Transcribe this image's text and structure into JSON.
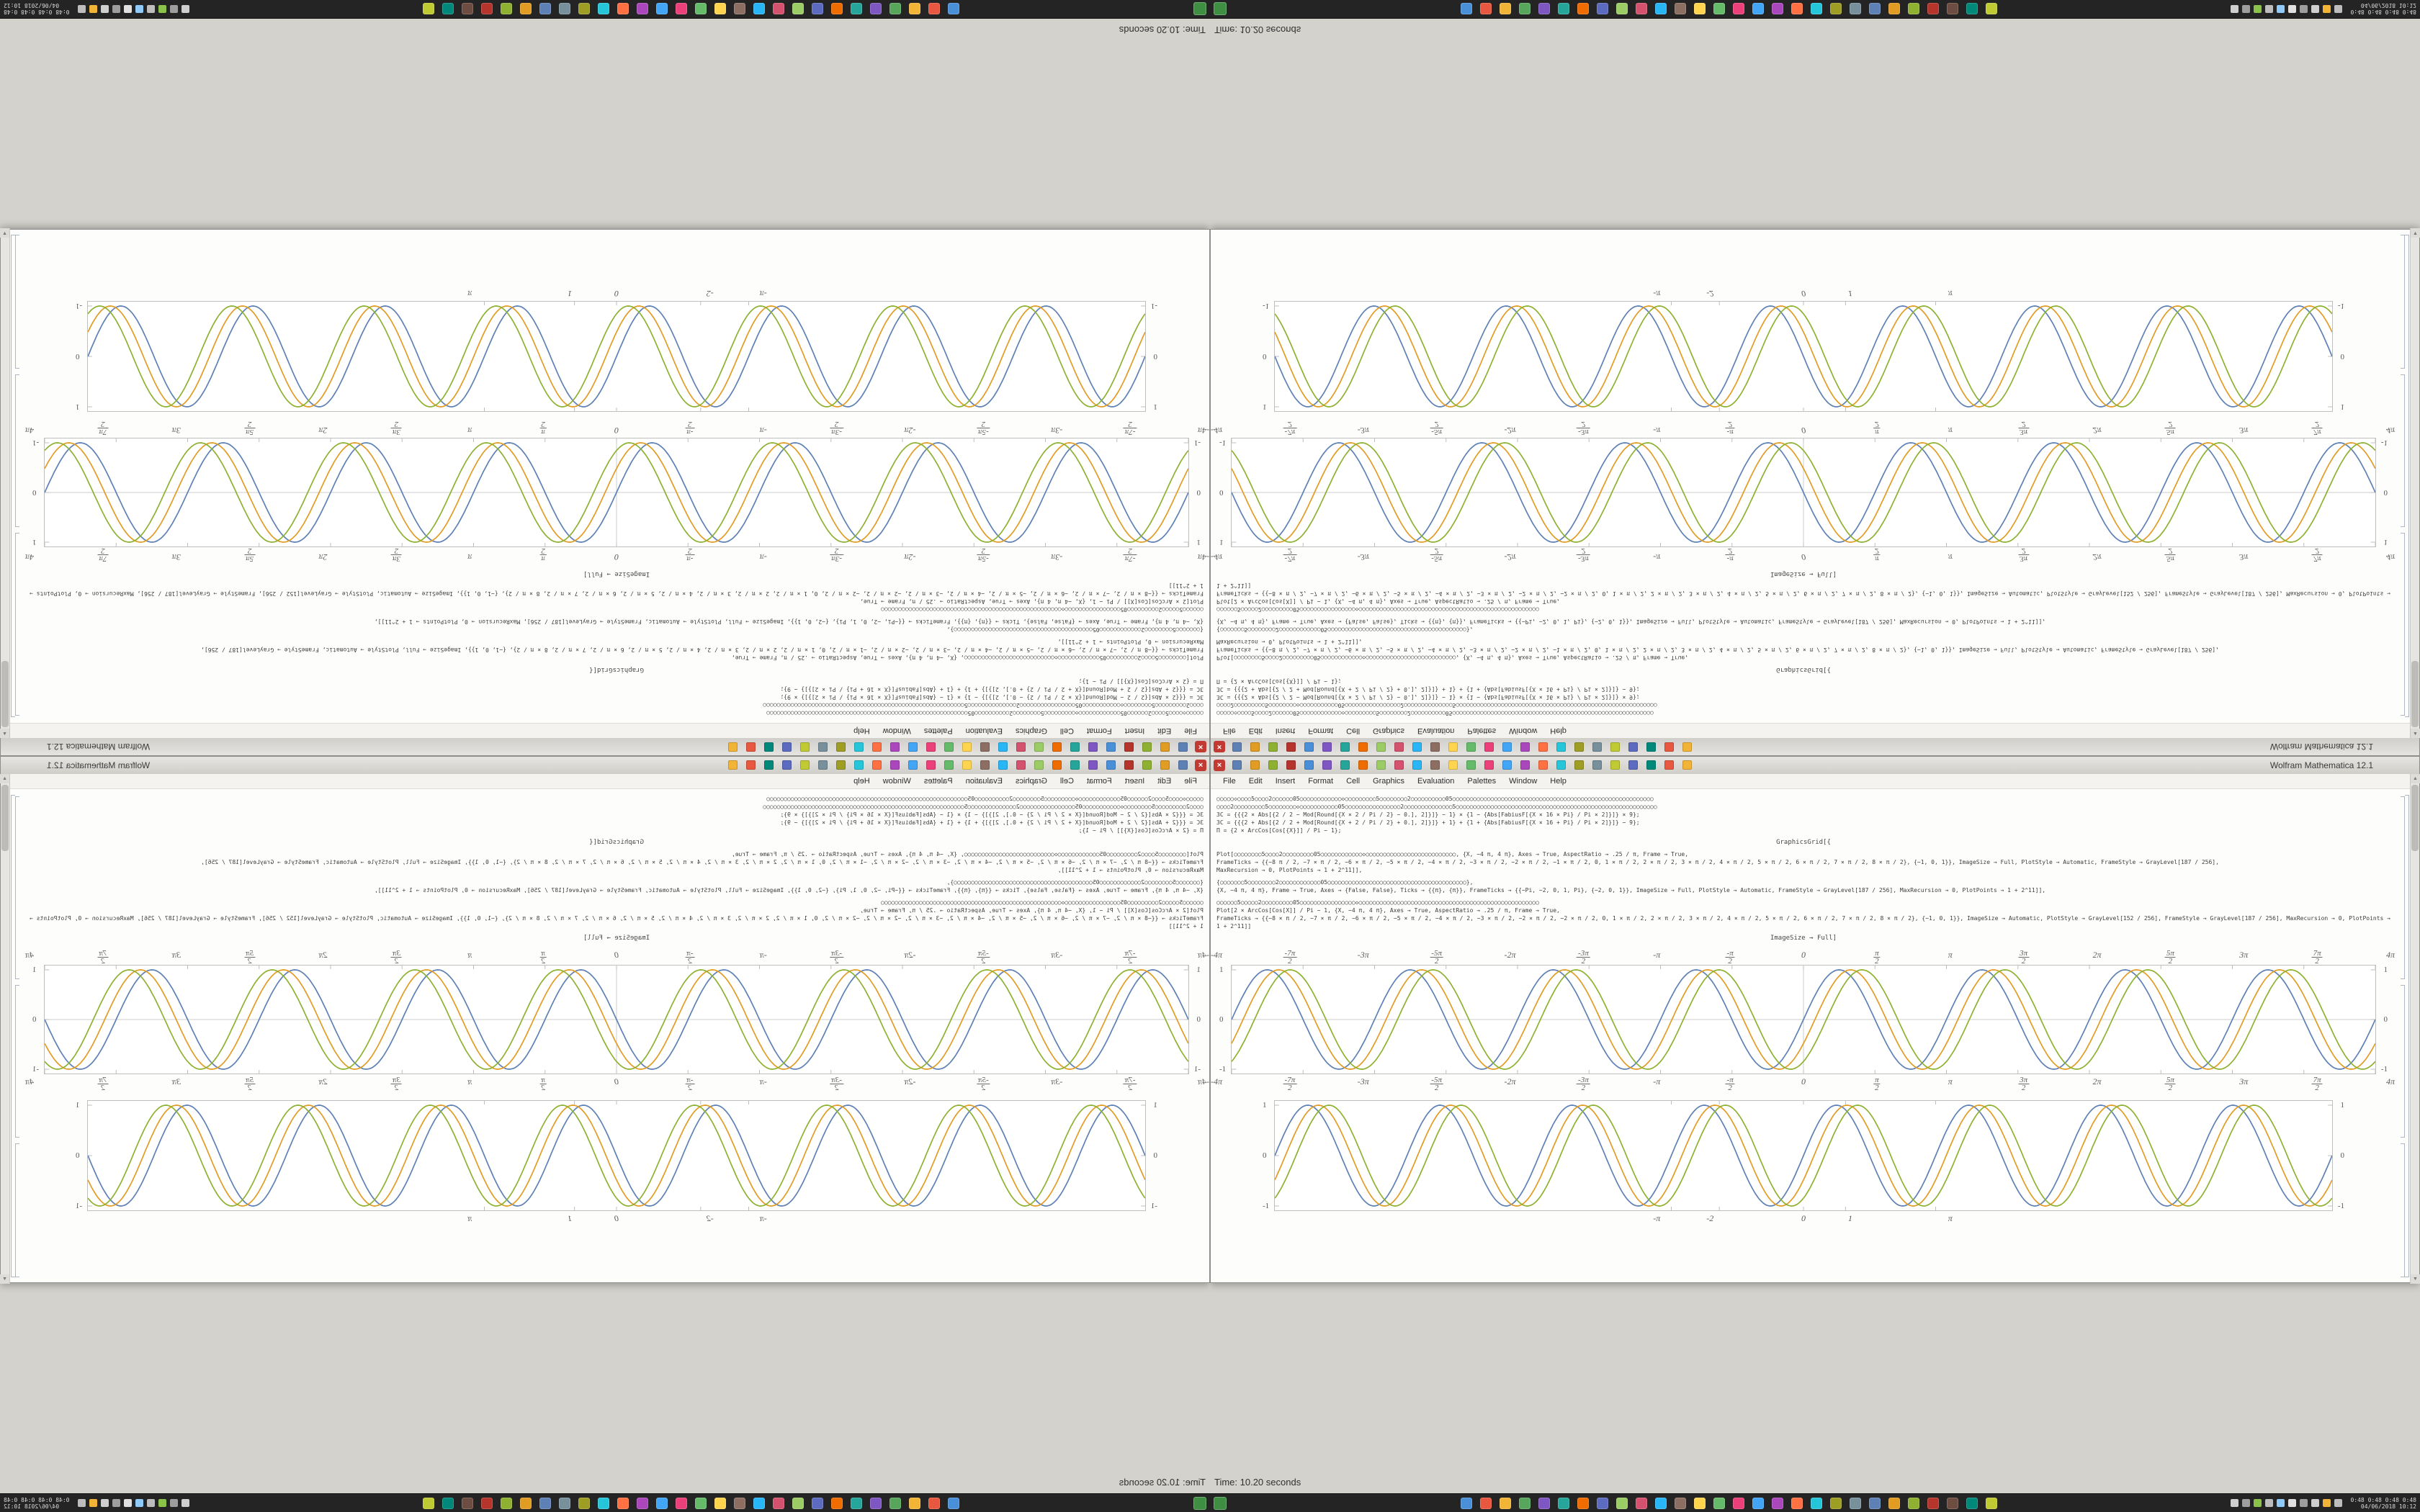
{
  "desktop": {
    "background": "#d3d2cd"
  },
  "window": {
    "title": "Wolfram Mathematica 12.1",
    "close_glyph": "×",
    "menu_items": [
      "File",
      "Edit",
      "Insert",
      "Format",
      "Cell",
      "Graphics",
      "Evaluation",
      "Palettes",
      "Window",
      "Help"
    ],
    "titlebar_icon_colors": [
      "#5e81b5",
      "#e19c24",
      "#8fb131",
      "#b5342c",
      "#4a90d9",
      "#7e57c2",
      "#26a69a",
      "#ef6c00",
      "#9ccc65",
      "#d4526e",
      "#29b6f6",
      "#8d6e63",
      "#ffd54f",
      "#66bb6a",
      "#ec407a",
      "#42a5f5",
      "#ab47bc",
      "#ff7043",
      "#26c6da",
      "#9e9d24",
      "#78909c",
      "#c0ca33",
      "#5c6bc0",
      "#00897b",
      "#e8573f",
      "#f2b437"
    ],
    "scrollbar": {
      "up_glyph": "▲",
      "down_glyph": "▼"
    }
  },
  "notebook": {
    "blocks": [
      {
        "type": "code",
        "lines": [
          "○○○○○◇○○○○5○○○○2○○○○○○05○○○○○○○○○○○○◇○○○○○○○○○5○○○○○○○○2○○○○○○○○○○05○○○○○○○○○○○○○○○○○○○○○○○○○○○○○○○○○○○○○○○○○○○○○○○○○○○○○○○○○○",
          "○○○○2○○○○○○○○○5○○○○○○○○◇○○○○○○○○○○○05○○○○○○○○○○○○○○○○2○○○○○○○○○○○○○○5○○○○○○○○○○○○○○○○○○○○○○○○○○○○○○○○○○○○○○○○○○○○○○○○○○○○○○○○○○",
          "3C = {{{2 × Abs[{2 / 2 − Mod[Round[{X × 2 / Pi / 2} − 0.], 2]}]} − 1} × {1 − {Abs[FabiusF[{X × 16 × Pi} / Pi × 2]}]} × 9};",
          "3C = {{{2 + Abs[{2 / 2 + Mod[Round[{X + 2 / Pi / 2} + 0.], 2]}]} + 1} + {1 + {Abs[FabiusF[{X × 16 + Pi} / Pi × 2]}]} − 9};",
          "Π = {2 × ArcCos[Cos[{X}]] / Pi − 1};"
        ]
      },
      {
        "type": "center",
        "text": "GraphicsGrid[{"
      },
      {
        "type": "code",
        "lines": [
          "Plot[○○○○○○○○5○○○○2○○○○○○○○○05○○○○○○○○○○○○◇○○○○○○○○○○○○○○○○○○○○○○○○○○, {X, −4 π, 4 π}, Axes → True, AspectRatio → .25 / π, Frame → True,",
          "FrameTicks → {{−8 π / 2, −7 × π / 2, −6 × π / 2, −5 × π / 2, −4 × π / 2, −3 × π / 2, −2 × π / 2, −1 × π / 2, 0, 1 × π / 2, 2 × π / 2, 3 × π / 2, 4 × π / 2, 5 × π / 2, 6 × π / 2, 7 × π / 2, 8 × π / 2}, {−1, 0, 1}}, ImageSize → Full, PlotStyle → Automatic, FrameStyle → GrayLevel[187 / 256],",
          "MaxRecursion → 0, PlotPoints → 1 + 2^11]],"
        ]
      },
      {
        "type": "code",
        "lines": [
          "{○○○○○○○5○○○○○○○○2○○○○○○○○○○○○05○○○○○○○○○○○○○○○○○○○○○○○○○○○○○○○○○○○○○○○○},",
          "{X, −4 π, 4 π}, Frame → True, Axes → {False, False}, Ticks → {{π}, {π}}, FrameTicks → {{−Pi, −2, 0, 1, Pi}, {−2, 0, 1}}, ImageSize → Full, PlotStyle → Automatic, FrameStyle → GrayLevel[187 / 256], MaxRecursion → 0, PlotPoints → 1 + 2^11]],"
        ]
      },
      {
        "type": "code",
        "lines": [
          "○○○○○○5○○○○○2○○○○○○○○○05○○○○○○○○○○○○○○○○◇○○○○○○○○○○○○○○○○○○○○○○○○○○○○○○○○○○○○○○○○○○○○○○○○○○○○",
          "Plot[2 × ArcCos[Cos[X]] / Pi − 1, {X, −4 π, 4 π}, Axes → True, AspectRatio → .25 / π, Frame → True,",
          "FrameTicks → {{−8 × π / 2, −7 × π / 2, −6 × π / 2, −5 × π / 2, −4 × π / 2, −3 × π / 2, −2 × π / 2, −2 × π / 2, 0, 1 × π / 2, 2 × π / 2, 3 × π / 2, 4 × π / 2, 5 × π / 2, 6 × π / 2, 7 × π / 2, 8 × π / 2}, {−1, 0, 1}}, ImageSize → Automatic, PlotStyle → GrayLevel[152 / 256], FrameStyle → GrayLevel[187 / 256], MaxRecursion → 0, PlotPoints → 1 + 2^11]]"
        ]
      },
      {
        "type": "center",
        "text": "ImageSize → Full]"
      },
      {
        "type": "plot",
        "chart": 0
      },
      {
        "type": "plot",
        "chart": 1
      }
    ]
  },
  "chart_data": [
    {
      "id": "plot-a",
      "type": "line",
      "title": "",
      "x_range_pi": [
        -4,
        4
      ],
      "y_range": [
        -1,
        1
      ],
      "x_tick_labels": [
        "-4π",
        "-7π/2",
        "-3π",
        "-5π/2",
        "-2π",
        "-3π/2",
        "-π",
        "-π/2",
        "0",
        "π/2",
        "π",
        "3π/2",
        "2π",
        "5π/2",
        "3π",
        "7π/2",
        "4π"
      ],
      "y_tick_labels": [
        "1",
        "0",
        "-1"
      ],
      "ticks_top": true,
      "ticks_bottom": true,
      "axes": true,
      "frame": true,
      "frame_color": "#bfbfbf",
      "series": [
        {
          "name": "wave-blue",
          "color": "#5e81b5",
          "function": "sin",
          "period_pi": 1,
          "phase_pi": 0,
          "amplitude": 1
        },
        {
          "name": "wave-gold",
          "color": "#e19c24",
          "function": "sin",
          "period_pi": 1,
          "phase_pi": 0.08,
          "amplitude": 1
        },
        {
          "name": "wave-green",
          "color": "#8fb131",
          "function": "sin",
          "period_pi": 1,
          "phase_pi": 0.16,
          "amplitude": 1
        }
      ]
    },
    {
      "id": "plot-b",
      "type": "line",
      "title": "",
      "x_range_pi": [
        -4,
        4
      ],
      "y_range": [
        -1,
        1
      ],
      "x_ticks": [
        {
          "label": "-π",
          "v": -3.14159
        },
        {
          "label": "-2",
          "v": -2
        },
        {
          "label": "0",
          "v": 0
        },
        {
          "label": "1",
          "v": 1
        },
        {
          "label": "π",
          "v": 3.14159
        }
      ],
      "y_tick_labels": [
        "1",
        "0",
        "-1"
      ],
      "ticks_top": false,
      "ticks_bottom": true,
      "axes": false,
      "frame": true,
      "frame_color": "#bfbfbf",
      "series": [
        {
          "name": "wave-blue",
          "color": "#5e81b5",
          "function": "sin",
          "period_pi": 1,
          "phase_pi": 0,
          "amplitude": 1
        },
        {
          "name": "wave-gold",
          "color": "#e19c24",
          "function": "sin",
          "period_pi": 1,
          "phase_pi": 0.08,
          "amplitude": 1
        },
        {
          "name": "wave-green",
          "color": "#8fb131",
          "function": "sin",
          "period_pi": 1,
          "phase_pi": 0.16,
          "amplitude": 1
        }
      ]
    }
  ],
  "status": {
    "text": "Time: 10.20 seconds"
  },
  "taskbar": {
    "app_icon_colors": [
      "#4a90d9",
      "#e8573f",
      "#f2b437",
      "#58a55c",
      "#7e57c2",
      "#26a69a",
      "#ef6c00",
      "#5c6bc0",
      "#9ccc65",
      "#d4526e",
      "#29b6f6",
      "#8d6e63",
      "#ffd54f",
      "#66bb6a",
      "#ec407a",
      "#42a5f5",
      "#ab47bc",
      "#ff7043",
      "#26c6da",
      "#9e9d24",
      "#78909c",
      "#5e81b5",
      "#e19c24",
      "#8fb131",
      "#b5342c",
      "#6d4c41",
      "#00897b",
      "#c0ca33"
    ],
    "tray": {
      "icon_colors": [
        "#cfcfcf",
        "#9e9e9e",
        "#8bc34a",
        "#bdbdbd",
        "#90caf9",
        "#e0e0e0",
        "#9e9e9e",
        "#cfcfcf",
        "#f2b437",
        "#bdbdbd"
      ],
      "monitors": "0:48  0:48  0:48  0:48",
      "date": "04/06/2018",
      "time": "10:12"
    }
  }
}
